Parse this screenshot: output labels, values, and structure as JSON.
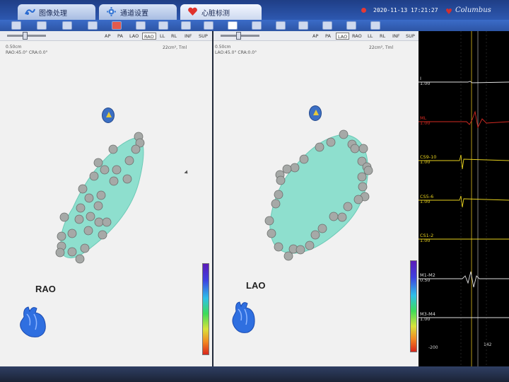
{
  "tabs": [
    {
      "label": "图像处理",
      "icon": "image-processing-icon"
    },
    {
      "label": "通道设置",
      "icon": "gear-icon"
    },
    {
      "label": "心脏标测",
      "icon": "heart-icon"
    }
  ],
  "status": {
    "datetime": "2020-11-13 17:21:27",
    "brand": "Columbus"
  },
  "views": {
    "buttons": [
      "AP",
      "PA",
      "LAO",
      "RAO",
      "LL",
      "RL",
      "INF",
      "SUP"
    ],
    "left": {
      "selected": "RAO",
      "info_line1": "0.50cm",
      "info_line2": "RAO:45.0° CRA:0.0°",
      "area": "22cm², Tml",
      "label": "RAO"
    },
    "right": {
      "selected": "LAO",
      "info_line1": "0.50cm",
      "info_line2": "LAO:45.0° CRA:0.0°",
      "area": "22cm², Tml",
      "label": "LAO"
    }
  },
  "channels": [
    {
      "name": "I",
      "gain": "1.00",
      "color": "#e0e0e0"
    },
    {
      "name": "ML",
      "gain": "1.00",
      "color": "#d42a22"
    },
    {
      "name": "CS9-10",
      "gain": "1.00",
      "color": "#e8d21e"
    },
    {
      "name": "CS5-6",
      "gain": "1.00",
      "color": "#e8d21e"
    },
    {
      "name": "CS1-2",
      "gain": "1.00",
      "color": "#e8d21e"
    },
    {
      "name": "M1-M2",
      "gain": "0.50",
      "color": "#e0e0e0"
    },
    {
      "name": "M3-M4",
      "gain": "1.00",
      "color": "#e0e0e0"
    }
  ],
  "wave_footer": {
    "left": "-200",
    "right": "142"
  },
  "colors": {
    "map": "#7ddcc8",
    "point": "#a7aaa8"
  }
}
